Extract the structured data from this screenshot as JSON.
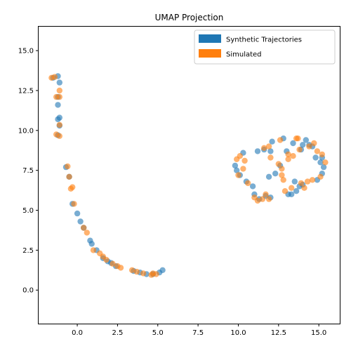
{
  "chart_data": {
    "type": "scatter",
    "title": "UMAP Projection",
    "xlabel": "",
    "ylabel": "",
    "xlim": [
      -2.4,
      16.3
    ],
    "ylim": [
      -2.1,
      16.5
    ],
    "xticks": [
      0.0,
      2.5,
      5.0,
      7.5,
      10.0,
      12.5,
      15.0
    ],
    "xtick_labels": [
      "0.0",
      "2.5",
      "5.0",
      "7.5",
      "10.0",
      "12.5",
      "15.0"
    ],
    "yticks": [
      0.0,
      2.5,
      5.0,
      7.5,
      10.0,
      12.5,
      15.0
    ],
    "ytick_labels": [
      "0.0",
      "2.5",
      "5.0",
      "7.5",
      "10.0",
      "12.5",
      "15.0"
    ],
    "grid": false,
    "legend_position": "top-right",
    "series": [
      {
        "name": "Synthetic Trajectories",
        "color": "#1f77b4",
        "points": [
          [
            -1.5,
            13.3
          ],
          [
            -1.2,
            13.4
          ],
          [
            -1.1,
            13.0
          ],
          [
            -1.2,
            12.1
          ],
          [
            -1.2,
            11.6
          ],
          [
            -1.1,
            10.8
          ],
          [
            -1.2,
            10.7
          ],
          [
            -1.1,
            10.3
          ],
          [
            -1.2,
            9.7
          ],
          [
            -0.7,
            7.7
          ],
          [
            -0.5,
            7.1
          ],
          [
            -0.3,
            5.4
          ],
          [
            0.0,
            4.8
          ],
          [
            0.2,
            4.3
          ],
          [
            0.4,
            3.9
          ],
          [
            0.8,
            3.1
          ],
          [
            0.9,
            2.9
          ],
          [
            1.2,
            2.5
          ],
          [
            1.6,
            2.0
          ],
          [
            1.9,
            1.8
          ],
          [
            2.1,
            1.7
          ],
          [
            2.4,
            1.5
          ],
          [
            3.5,
            1.2
          ],
          [
            3.9,
            1.1
          ],
          [
            4.3,
            1.0
          ],
          [
            4.7,
            1.0
          ],
          [
            5.1,
            1.1
          ],
          [
            5.3,
            1.25
          ],
          [
            9.8,
            7.8
          ],
          [
            9.9,
            7.5
          ],
          [
            10.1,
            7.2
          ],
          [
            10.3,
            8.6
          ],
          [
            10.5,
            6.8
          ],
          [
            10.9,
            6.5
          ],
          [
            11.0,
            6.0
          ],
          [
            11.3,
            5.7
          ],
          [
            11.7,
            5.9
          ],
          [
            12.0,
            5.8
          ],
          [
            12.3,
            7.3
          ],
          [
            11.9,
            7.1
          ],
          [
            11.2,
            8.7
          ],
          [
            11.6,
            8.8
          ],
          [
            12.0,
            8.7
          ],
          [
            12.1,
            9.3
          ],
          [
            12.6,
            7.8
          ],
          [
            12.8,
            9.5
          ],
          [
            13.0,
            8.7
          ],
          [
            13.1,
            6.0
          ],
          [
            13.3,
            6.0
          ],
          [
            13.4,
            9.2
          ],
          [
            13.5,
            6.8
          ],
          [
            13.6,
            6.2
          ],
          [
            13.8,
            6.5
          ],
          [
            13.9,
            8.8
          ],
          [
            14.0,
            6.6
          ],
          [
            14.0,
            9.1
          ],
          [
            14.2,
            9.4
          ],
          [
            14.4,
            9.1
          ],
          [
            14.6,
            9.0
          ],
          [
            14.8,
            8.3
          ],
          [
            14.9,
            6.9
          ],
          [
            15.1,
            8.0
          ],
          [
            15.2,
            7.3
          ],
          [
            15.3,
            7.7
          ],
          [
            15.2,
            8.3
          ]
        ]
      },
      {
        "name": "Simulated",
        "color": "#ff7f0e",
        "points": [
          [
            -1.6,
            13.3
          ],
          [
            -1.4,
            13.35
          ],
          [
            -1.3,
            12.1
          ],
          [
            -1.1,
            12.5
          ],
          [
            -1.1,
            12.1
          ],
          [
            -1.1,
            10.35
          ],
          [
            -1.3,
            9.75
          ],
          [
            -1.1,
            9.65
          ],
          [
            -0.6,
            7.75
          ],
          [
            -0.5,
            7.1
          ],
          [
            -0.4,
            6.35
          ],
          [
            -0.3,
            6.45
          ],
          [
            -0.2,
            5.4
          ],
          [
            0.4,
            3.9
          ],
          [
            0.6,
            3.6
          ],
          [
            1.0,
            2.5
          ],
          [
            1.4,
            2.3
          ],
          [
            1.6,
            2.1
          ],
          [
            1.8,
            1.9
          ],
          [
            2.2,
            1.65
          ],
          [
            2.5,
            1.5
          ],
          [
            2.7,
            1.4
          ],
          [
            3.4,
            1.25
          ],
          [
            3.7,
            1.15
          ],
          [
            4.1,
            1.05
          ],
          [
            4.6,
            0.95
          ],
          [
            4.7,
            1.05
          ],
          [
            4.9,
            1.0
          ],
          [
            9.9,
            8.2
          ],
          [
            10.0,
            7.2
          ],
          [
            10.1,
            8.4
          ],
          [
            10.3,
            7.6
          ],
          [
            10.4,
            8.1
          ],
          [
            10.6,
            6.7
          ],
          [
            11.0,
            5.8
          ],
          [
            11.2,
            5.6
          ],
          [
            11.5,
            5.7
          ],
          [
            11.7,
            6.0
          ],
          [
            11.9,
            5.7
          ],
          [
            12.0,
            8.3
          ],
          [
            11.6,
            8.9
          ],
          [
            11.9,
            9.0
          ],
          [
            12.5,
            7.9
          ],
          [
            12.7,
            7.2
          ],
          [
            12.7,
            7.6
          ],
          [
            12.8,
            6.9
          ],
          [
            12.9,
            6.2
          ],
          [
            13.1,
            8.5
          ],
          [
            13.1,
            8.2
          ],
          [
            13.3,
            6.4
          ],
          [
            13.4,
            8.4
          ],
          [
            13.6,
            9.5
          ],
          [
            13.8,
            8.8
          ],
          [
            13.9,
            6.7
          ],
          [
            14.1,
            6.4
          ],
          [
            14.3,
            6.8
          ],
          [
            14.4,
            9.0
          ],
          [
            14.6,
            6.9
          ],
          [
            14.7,
            9.2
          ],
          [
            14.9,
            8.7
          ],
          [
            15.1,
            7.1
          ],
          [
            15.2,
            8.5
          ],
          [
            15.4,
            8.0
          ],
          [
            12.6,
            9.4
          ],
          [
            13.7,
            9.5
          ]
        ]
      }
    ]
  }
}
